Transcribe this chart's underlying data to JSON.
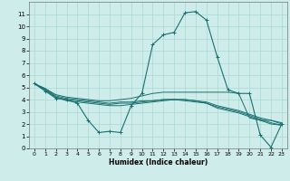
{
  "title": "",
  "xlabel": "Humidex (Indice chaleur)",
  "xlim": [
    -0.5,
    23.5
  ],
  "ylim": [
    0,
    12
  ],
  "xticks": [
    0,
    1,
    2,
    3,
    4,
    5,
    6,
    7,
    8,
    9,
    10,
    11,
    12,
    13,
    14,
    15,
    16,
    17,
    18,
    19,
    20,
    21,
    22,
    23
  ],
  "yticks": [
    0,
    1,
    2,
    3,
    4,
    5,
    6,
    7,
    8,
    9,
    10,
    11
  ],
  "background_color": "#ceecea",
  "grid_color": "#a8d8d4",
  "line_color": "#1a7070",
  "lines": [
    {
      "x": [
        0,
        1,
        2,
        3,
        4,
        5,
        6,
        7,
        8,
        9,
        10,
        11,
        12,
        13,
        14,
        15,
        16,
        17,
        18,
        19,
        20,
        21,
        22,
        23
      ],
      "y": [
        5.3,
        4.7,
        4.1,
        4.0,
        3.7,
        2.3,
        1.3,
        1.4,
        1.3,
        3.5,
        4.5,
        8.5,
        9.3,
        9.5,
        11.1,
        11.2,
        10.5,
        7.5,
        4.8,
        4.5,
        4.5,
        1.1,
        0.1,
        2.0
      ],
      "marker": "+"
    },
    {
      "x": [
        0,
        1,
        2,
        3,
        4,
        5,
        6,
        7,
        8,
        9,
        10,
        11,
        12,
        13,
        14,
        15,
        16,
        17,
        18,
        19,
        20,
        21,
        22,
        23
      ],
      "y": [
        5.3,
        4.9,
        4.4,
        4.2,
        4.1,
        4.0,
        3.9,
        3.9,
        4.0,
        4.1,
        4.3,
        4.5,
        4.6,
        4.6,
        4.6,
        4.6,
        4.6,
        4.6,
        4.6,
        4.5,
        2.5,
        2.3,
        2.3,
        2.1
      ],
      "marker": null
    },
    {
      "x": [
        0,
        1,
        2,
        3,
        4,
        5,
        6,
        7,
        8,
        9,
        10,
        11,
        12,
        13,
        14,
        15,
        16,
        17,
        18,
        19,
        20,
        21,
        22,
        23
      ],
      "y": [
        5.3,
        4.9,
        4.3,
        4.1,
        4.0,
        3.9,
        3.8,
        3.7,
        3.8,
        3.8,
        3.9,
        3.9,
        4.0,
        4.0,
        4.0,
        3.9,
        3.8,
        3.5,
        3.3,
        3.1,
        2.8,
        2.5,
        2.3,
        2.0
      ],
      "marker": null
    },
    {
      "x": [
        0,
        1,
        2,
        3,
        4,
        5,
        6,
        7,
        8,
        9,
        10,
        11,
        12,
        13,
        14,
        15,
        16,
        17,
        18,
        19,
        20,
        21,
        22,
        23
      ],
      "y": [
        5.3,
        4.8,
        4.2,
        4.0,
        3.9,
        3.8,
        3.7,
        3.6,
        3.7,
        3.7,
        3.8,
        3.9,
        4.0,
        4.0,
        4.0,
        3.9,
        3.7,
        3.4,
        3.2,
        3.0,
        2.7,
        2.4,
        2.1,
        1.9
      ],
      "marker": null
    },
    {
      "x": [
        0,
        1,
        2,
        3,
        4,
        5,
        6,
        7,
        8,
        9,
        10,
        11,
        12,
        13,
        14,
        15,
        16,
        17,
        18,
        19,
        20,
        21,
        22,
        23
      ],
      "y": [
        5.3,
        4.8,
        4.2,
        3.9,
        3.8,
        3.7,
        3.6,
        3.5,
        3.5,
        3.6,
        3.7,
        3.8,
        3.9,
        4.0,
        3.9,
        3.8,
        3.7,
        3.3,
        3.1,
        2.9,
        2.6,
        2.3,
        2.0,
        1.9
      ],
      "marker": null
    }
  ]
}
